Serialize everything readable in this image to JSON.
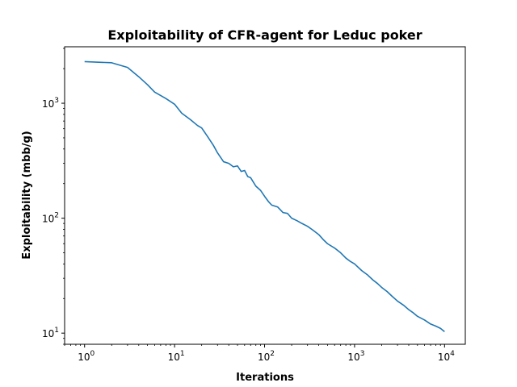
{
  "chart_data": {
    "type": "line",
    "title": "Exploitability of CFR-agent for Leduc poker",
    "xlabel": "Iterations",
    "ylabel": "Exploitability (mbb/g)",
    "xscale": "log",
    "yscale": "log",
    "xlim": [
      0.6,
      17000
    ],
    "ylim": [
      8,
      3100
    ],
    "grid": false,
    "x_ticks": [
      {
        "base": "10",
        "exp": "0",
        "value": 1
      },
      {
        "base": "10",
        "exp": "1",
        "value": 10
      },
      {
        "base": "10",
        "exp": "2",
        "value": 100
      },
      {
        "base": "10",
        "exp": "3",
        "value": 1000
      },
      {
        "base": "10",
        "exp": "4",
        "value": 10000
      }
    ],
    "y_ticks": [
      {
        "base": "10",
        "exp": "1",
        "value": 10
      },
      {
        "base": "10",
        "exp": "2",
        "value": 100
      },
      {
        "base": "10",
        "exp": "3",
        "value": 1000
      }
    ],
    "series": [
      {
        "color": "#1f77b4",
        "x": [
          1,
          2,
          3,
          4,
          5,
          6,
          8,
          10,
          12,
          15,
          18,
          20,
          23,
          27,
          30,
          35,
          40,
          45,
          50,
          55,
          60,
          65,
          70,
          80,
          90,
          100,
          110,
          120,
          140,
          160,
          180,
          200,
          230,
          260,
          300,
          350,
          400,
          450,
          500,
          600,
          700,
          800,
          900,
          1000,
          1200,
          1400,
          1600,
          1800,
          2000,
          2300,
          2600,
          3000,
          3500,
          4000,
          4500,
          5000,
          6000,
          7000,
          8000,
          9000,
          10000
        ],
        "y": [
          2300,
          2250,
          2050,
          1700,
          1450,
          1250,
          1100,
          980,
          820,
          720,
          640,
          610,
          520,
          430,
          370,
          310,
          300,
          280,
          285,
          255,
          260,
          230,
          225,
          190,
          175,
          155,
          140,
          130,
          125,
          112,
          110,
          100,
          95,
          90,
          85,
          78,
          72,
          65,
          60,
          55,
          50,
          45,
          42,
          40,
          35,
          32,
          29,
          27,
          25,
          23,
          21,
          19,
          17.5,
          16,
          15,
          14,
          13,
          12,
          11.5,
          11,
          10.3
        ]
      }
    ]
  }
}
